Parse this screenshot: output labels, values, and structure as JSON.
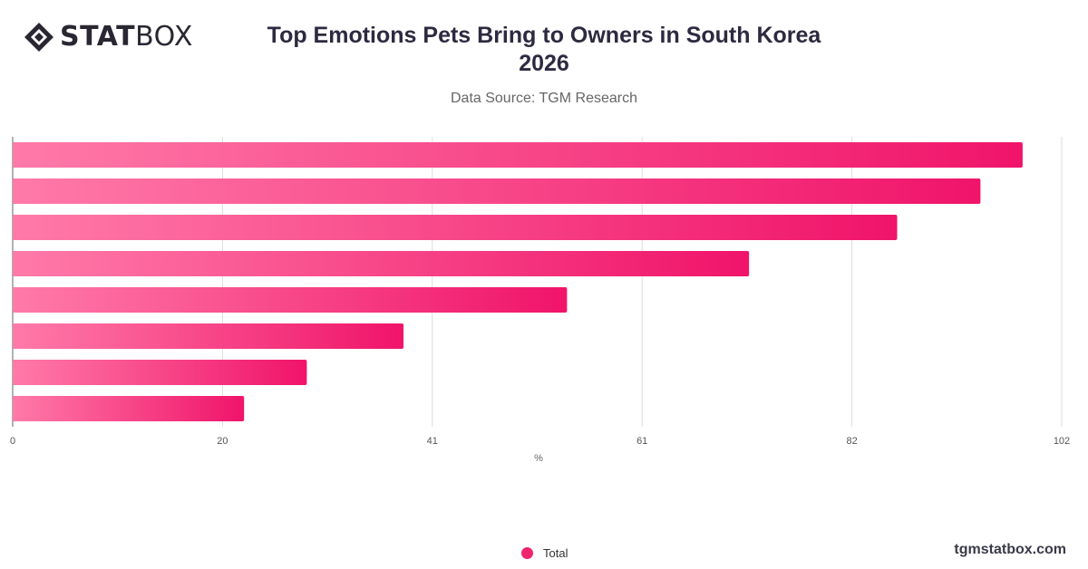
{
  "brand": {
    "logo_bold": "STAT",
    "logo_light": "BOX",
    "footer_url": "tgmstatbox.com"
  },
  "header": {
    "title_line1": "Top Emotions Pets Bring to Owners in South Korea",
    "title_line2": "2026",
    "subtitle": "Data Source: TGM Research"
  },
  "legend": {
    "label": "Total"
  },
  "colors": {
    "bar_start": "#ff7aa8",
    "bar_end": "#f0146a",
    "grid": "#dddddd",
    "axis": "#666666"
  },
  "chart_data": {
    "type": "bar",
    "orientation": "horizontal",
    "title": "Top Emotions Pets Bring to Owners in South Korea 2026",
    "xlabel": "%",
    "ylabel": "",
    "xlim": [
      0,
      102
    ],
    "x_ticks": [
      "0",
      "20",
      "41",
      "61",
      "82",
      "102"
    ],
    "x_tick_values": [
      0,
      20.4,
      40.8,
      61.2,
      81.6,
      102
    ],
    "grid": true,
    "legend_position": "bottom",
    "series": [
      {
        "name": "Total",
        "values": [
          98.2,
          94.1,
          86.0,
          71.6,
          53.9,
          38.0,
          28.6,
          22.5
        ]
      }
    ]
  }
}
